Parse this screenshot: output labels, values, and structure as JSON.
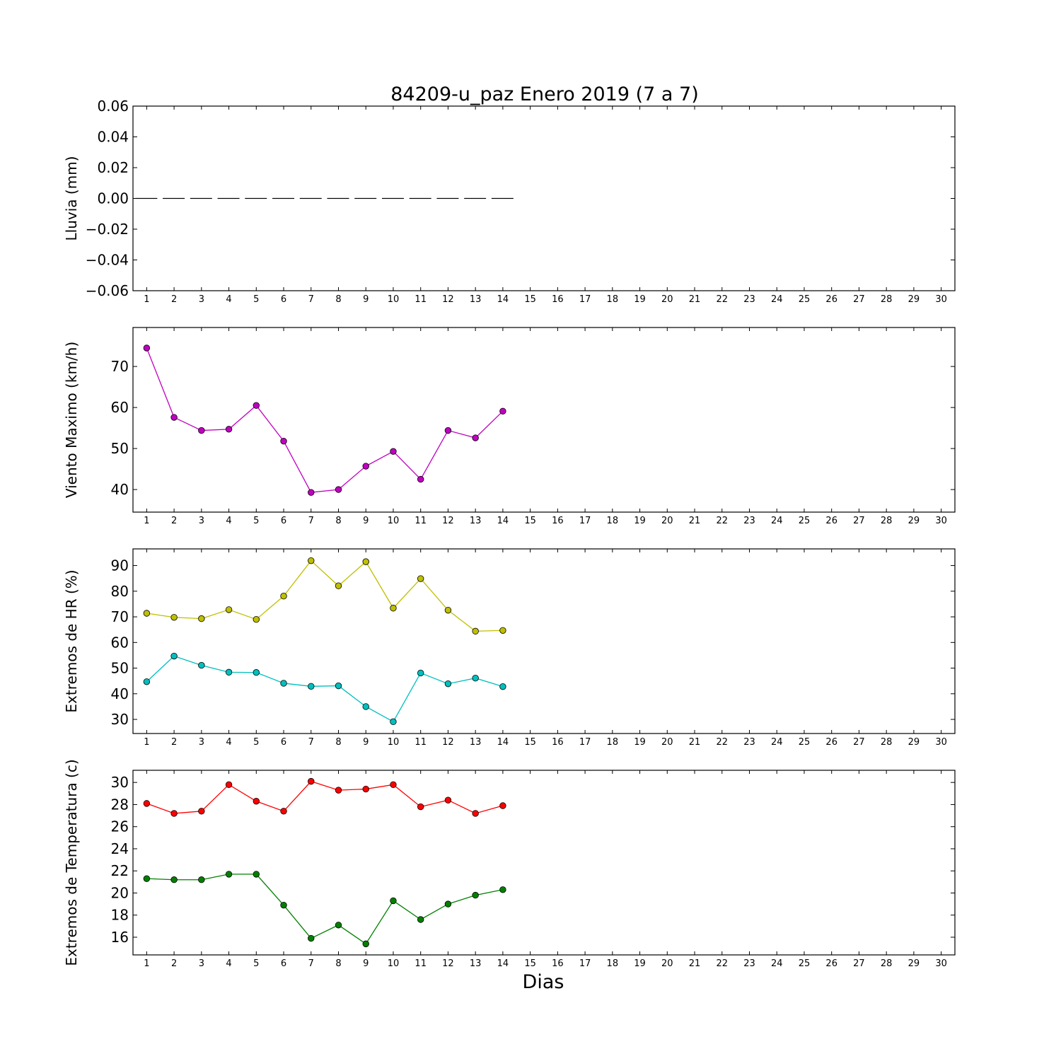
{
  "title": "84209-u_paz Enero 2019  (7 a 7)",
  "xlabel": "Dias",
  "chart_data": [
    {
      "type": "bar",
      "ylabel": "Lluvia (mm)",
      "x": [
        1,
        2,
        3,
        4,
        5,
        6,
        7,
        8,
        9,
        10,
        11,
        12,
        13,
        14
      ],
      "values": [
        0,
        0,
        0,
        0,
        0,
        0,
        0,
        0,
        0,
        0,
        0,
        0,
        0,
        0
      ],
      "xlim": [
        0.5,
        30.5
      ],
      "ylim": [
        -0.06,
        0.06
      ],
      "yticks": [
        -0.06,
        -0.04,
        -0.02,
        0.0,
        0.02,
        0.04,
        0.06
      ],
      "ytick_labels": [
        "−0.06",
        "−0.04",
        "−0.02",
        "0.00",
        "0.02",
        "0.04",
        "0.06"
      ],
      "xticks": [
        1,
        2,
        3,
        4,
        5,
        6,
        7,
        8,
        9,
        10,
        11,
        12,
        13,
        14,
        15,
        16,
        17,
        18,
        19,
        20,
        21,
        22,
        23,
        24,
        25,
        26,
        27,
        28,
        29,
        30
      ],
      "color": "#000000"
    },
    {
      "type": "line",
      "ylabel": "Viento Maximo (km/h)",
      "x": [
        1,
        2,
        3,
        4,
        5,
        6,
        7,
        8,
        9,
        10,
        11,
        12,
        13,
        14
      ],
      "series": [
        {
          "values": [
            74.5,
            57.6,
            54.4,
            54.7,
            60.5,
            51.8,
            39.3,
            40.0,
            45.7,
            49.3,
            42.5,
            54.4,
            52.6,
            59.1
          ],
          "color": "#c000c0"
        }
      ],
      "xlim": [
        0.5,
        30.5
      ],
      "ylim": [
        34.5,
        79.5
      ],
      "yticks": [
        40,
        50,
        60,
        70
      ],
      "ytick_labels": [
        "40",
        "50",
        "60",
        "70"
      ],
      "xticks": [
        1,
        2,
        3,
        4,
        5,
        6,
        7,
        8,
        9,
        10,
        11,
        12,
        13,
        14,
        15,
        16,
        17,
        18,
        19,
        20,
        21,
        22,
        23,
        24,
        25,
        26,
        27,
        28,
        29,
        30
      ]
    },
    {
      "type": "line",
      "ylabel": "Extremos de HR (%)",
      "x": [
        1,
        2,
        3,
        4,
        5,
        6,
        7,
        8,
        9,
        10,
        11,
        12,
        13,
        14
      ],
      "series": [
        {
          "values": [
            71.4,
            69.8,
            69.3,
            72.8,
            69.0,
            78.1,
            91.9,
            82.1,
            91.5,
            73.4,
            84.9,
            72.6,
            64.4,
            64.7
          ],
          "color": "#bfbf00"
        },
        {
          "values": [
            44.7,
            54.7,
            51.1,
            48.4,
            48.3,
            44.1,
            42.9,
            43.1,
            35.0,
            29.1,
            48.1,
            43.9,
            46.1,
            42.8
          ],
          "color": "#00bfbf"
        }
      ],
      "xlim": [
        0.5,
        30.5
      ],
      "ylim": [
        24.5,
        96.5
      ],
      "yticks": [
        30,
        40,
        50,
        60,
        70,
        80,
        90
      ],
      "ytick_labels": [
        "30",
        "40",
        "50",
        "60",
        "70",
        "80",
        "90"
      ],
      "xticks": [
        1,
        2,
        3,
        4,
        5,
        6,
        7,
        8,
        9,
        10,
        11,
        12,
        13,
        14,
        15,
        16,
        17,
        18,
        19,
        20,
        21,
        22,
        23,
        24,
        25,
        26,
        27,
        28,
        29,
        30
      ]
    },
    {
      "type": "line",
      "ylabel": "Extremos de Temperatura (c)",
      "x": [
        1,
        2,
        3,
        4,
        5,
        6,
        7,
        8,
        9,
        10,
        11,
        12,
        13,
        14
      ],
      "series": [
        {
          "values": [
            28.1,
            27.2,
            27.4,
            29.8,
            28.3,
            27.4,
            30.1,
            29.3,
            29.4,
            29.8,
            27.8,
            28.4,
            27.2,
            27.9
          ],
          "color": "#ff0000"
        },
        {
          "values": [
            21.3,
            21.2,
            21.2,
            21.7,
            21.7,
            18.9,
            15.9,
            17.1,
            15.4,
            19.3,
            17.6,
            19.0,
            19.8,
            20.3
          ],
          "color": "#008000"
        }
      ],
      "xlim": [
        0.5,
        30.5
      ],
      "ylim": [
        14.4,
        31.1
      ],
      "yticks": [
        16,
        18,
        20,
        22,
        24,
        26,
        28,
        30
      ],
      "ytick_labels": [
        "16",
        "18",
        "20",
        "22",
        "24",
        "26",
        "28",
        "30"
      ],
      "xticks": [
        1,
        2,
        3,
        4,
        5,
        6,
        7,
        8,
        9,
        10,
        11,
        12,
        13,
        14,
        15,
        16,
        17,
        18,
        19,
        20,
        21,
        22,
        23,
        24,
        25,
        26,
        27,
        28,
        29,
        30
      ]
    }
  ]
}
